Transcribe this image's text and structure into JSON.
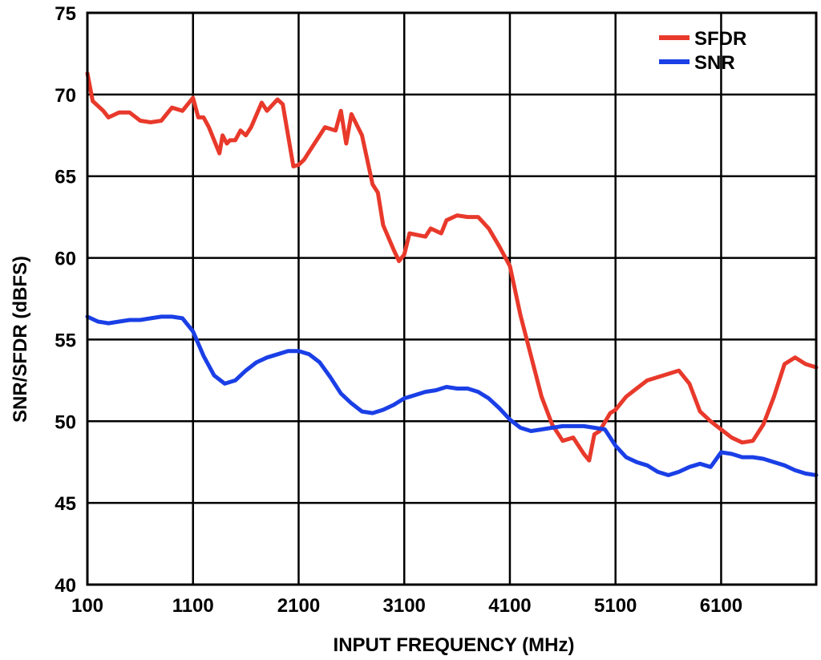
{
  "chart_data": {
    "type": "line",
    "xlabel": "INPUT FREQUENCY (MHz)",
    "ylabel": "SNR/SFDR (dBFS)",
    "xlim": [
      100,
      7000
    ],
    "ylim": [
      40,
      75
    ],
    "xticks": [
      100,
      1100,
      2100,
      3100,
      4100,
      5100,
      6100
    ],
    "yticks": [
      40,
      45,
      50,
      55,
      60,
      65,
      70,
      75
    ],
    "grid": true,
    "legend_position": "top-right",
    "series": [
      {
        "name": "SFDR",
        "color": "#e8392b",
        "x": [
          100,
          150,
          250,
          300,
          400,
          500,
          600,
          700,
          800,
          900,
          1000,
          1100,
          1150,
          1200,
          1250,
          1350,
          1380,
          1420,
          1450,
          1500,
          1550,
          1600,
          1650,
          1750,
          1800,
          1900,
          1950,
          2000,
          2050,
          2100,
          2150,
          2250,
          2350,
          2450,
          2500,
          2550,
          2600,
          2700,
          2800,
          2850,
          2900,
          3000,
          3050,
          3100,
          3150,
          3300,
          3350,
          3450,
          3500,
          3600,
          3700,
          3800,
          3900,
          4000,
          4100,
          4200,
          4300,
          4400,
          4500,
          4600,
          4700,
          4800,
          4850,
          4900,
          4950,
          5050,
          5100,
          5200,
          5300,
          5400,
          5550,
          5700,
          5800,
          5900,
          6000,
          6100,
          6200,
          6300,
          6400,
          6500,
          6600,
          6700,
          6800,
          6900,
          7000
        ],
        "values": [
          71.3,
          69.6,
          69.0,
          68.6,
          68.9,
          68.9,
          68.4,
          68.3,
          68.4,
          69.2,
          69.0,
          69.8,
          68.6,
          68.6,
          68.0,
          66.4,
          67.5,
          67.0,
          67.2,
          67.2,
          67.8,
          67.5,
          68.0,
          69.5,
          69.0,
          69.7,
          69.4,
          67.5,
          65.6,
          65.7,
          66.0,
          67.0,
          68.0,
          67.8,
          69.0,
          67.0,
          68.8,
          67.5,
          64.5,
          64.0,
          62.0,
          60.5,
          59.8,
          60.2,
          61.5,
          61.3,
          61.8,
          61.5,
          62.3,
          62.6,
          62.5,
          62.5,
          61.8,
          60.7,
          59.5,
          56.5,
          54.0,
          51.5,
          49.8,
          48.8,
          49.0,
          48.0,
          47.6,
          49.2,
          49.4,
          50.5,
          50.7,
          51.5,
          52.0,
          52.5,
          52.8,
          53.1,
          52.3,
          50.6,
          50.0,
          49.5,
          49.0,
          48.7,
          48.8,
          49.8,
          51.5,
          53.5,
          53.9,
          53.5,
          53.3
        ]
      },
      {
        "name": "SNR",
        "color": "#1a3fe6",
        "x": [
          100,
          200,
          300,
          400,
          500,
          600,
          700,
          800,
          900,
          1000,
          1100,
          1200,
          1300,
          1400,
          1500,
          1600,
          1700,
          1800,
          1900,
          2000,
          2100,
          2200,
          2300,
          2400,
          2500,
          2600,
          2700,
          2800,
          2900,
          3000,
          3100,
          3200,
          3300,
          3400,
          3500,
          3600,
          3700,
          3800,
          3900,
          4000,
          4100,
          4200,
          4300,
          4400,
          4500,
          4600,
          4700,
          4800,
          4900,
          5000,
          5100,
          5200,
          5300,
          5400,
          5500,
          5600,
          5700,
          5800,
          5900,
          6000,
          6100,
          6200,
          6300,
          6400,
          6500,
          6600,
          6700,
          6800,
          6900,
          7000
        ],
        "values": [
          56.4,
          56.1,
          56.0,
          56.1,
          56.2,
          56.2,
          56.3,
          56.4,
          56.4,
          56.3,
          55.5,
          54.0,
          52.8,
          52.3,
          52.5,
          53.1,
          53.6,
          53.9,
          54.1,
          54.3,
          54.3,
          54.1,
          53.6,
          52.7,
          51.7,
          51.1,
          50.6,
          50.5,
          50.7,
          51.0,
          51.4,
          51.6,
          51.8,
          51.9,
          52.1,
          52.0,
          52.0,
          51.8,
          51.4,
          50.8,
          50.1,
          49.6,
          49.4,
          49.5,
          49.6,
          49.7,
          49.7,
          49.7,
          49.6,
          49.5,
          48.5,
          47.8,
          47.5,
          47.3,
          46.9,
          46.7,
          46.9,
          47.2,
          47.4,
          47.2,
          48.1,
          48.0,
          47.8,
          47.8,
          47.7,
          47.5,
          47.3,
          47.0,
          46.8,
          46.7
        ]
      }
    ]
  }
}
